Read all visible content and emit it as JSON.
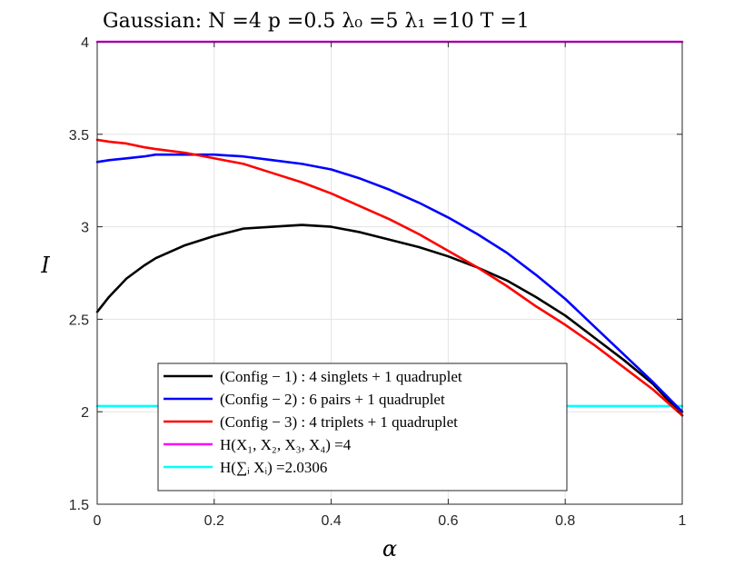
{
  "chart_data": {
    "type": "line",
    "title": "Gaussian:     N =4    p =0.5    λ₀ =5    λ₁ =10    T =1",
    "xlabel": "α",
    "ylabel": "I",
    "xlim": [
      0,
      1
    ],
    "ylim": [
      1.5,
      4
    ],
    "xticks": [
      0,
      0.2,
      0.4,
      0.6,
      0.8,
      1
    ],
    "xtick_labels": [
      "0",
      "0.2",
      "0.4",
      "0.6",
      "0.8",
      "1"
    ],
    "yticks": [
      1.5,
      2,
      2.5,
      3,
      3.5,
      4
    ],
    "ytick_labels": [
      "1.5",
      "2",
      "2.5",
      "3",
      "3.5",
      "4"
    ],
    "grid": true,
    "legend_position": "bottom-center",
    "series": [
      {
        "name": "(Config − 1) : 4 singlets + 1 quadruplet",
        "color": "#000000",
        "x": [
          0,
          0.02,
          0.05,
          0.08,
          0.1,
          0.15,
          0.2,
          0.25,
          0.3,
          0.35,
          0.4,
          0.45,
          0.5,
          0.55,
          0.6,
          0.65,
          0.7,
          0.75,
          0.8,
          0.85,
          0.9,
          0.95,
          1.0
        ],
        "values": [
          2.54,
          2.62,
          2.72,
          2.79,
          2.83,
          2.9,
          2.95,
          2.99,
          3.0,
          3.01,
          3.0,
          2.97,
          2.93,
          2.89,
          2.84,
          2.78,
          2.71,
          2.62,
          2.52,
          2.4,
          2.28,
          2.15,
          1.98
        ]
      },
      {
        "name": "(Config − 2) : 6 pairs + 1 quadruplet",
        "color": "#0000ff",
        "x": [
          0,
          0.02,
          0.05,
          0.08,
          0.1,
          0.15,
          0.2,
          0.25,
          0.3,
          0.35,
          0.4,
          0.45,
          0.5,
          0.55,
          0.6,
          0.65,
          0.7,
          0.75,
          0.8,
          0.85,
          0.9,
          0.95,
          1.0
        ],
        "values": [
          3.35,
          3.36,
          3.37,
          3.38,
          3.39,
          3.39,
          3.39,
          3.38,
          3.36,
          3.34,
          3.31,
          3.26,
          3.2,
          3.13,
          3.05,
          2.96,
          2.86,
          2.74,
          2.61,
          2.46,
          2.31,
          2.16,
          2.0
        ]
      },
      {
        "name": "(Config − 3) : 4 triplets + 1 quadruplet",
        "color": "#ff0000",
        "x": [
          0,
          0.02,
          0.05,
          0.08,
          0.1,
          0.15,
          0.2,
          0.25,
          0.3,
          0.35,
          0.4,
          0.45,
          0.5,
          0.55,
          0.6,
          0.65,
          0.7,
          0.75,
          0.8,
          0.85,
          0.9,
          0.95,
          1.0
        ],
        "values": [
          3.47,
          3.46,
          3.45,
          3.43,
          3.42,
          3.4,
          3.37,
          3.34,
          3.29,
          3.24,
          3.18,
          3.11,
          3.04,
          2.96,
          2.87,
          2.78,
          2.68,
          2.57,
          2.47,
          2.36,
          2.24,
          2.12,
          1.98
        ]
      },
      {
        "name": "H(X₁, X₂, X₃, X₄) =4",
        "color": "#ff00ff",
        "x": [
          0,
          1
        ],
        "values": [
          4,
          4
        ]
      },
      {
        "name": "H(∑ᵢ Xᵢ) =2.0306",
        "color": "#00ffff",
        "x": [
          0,
          1
        ],
        "values": [
          2.0306,
          2.0306
        ]
      }
    ]
  }
}
